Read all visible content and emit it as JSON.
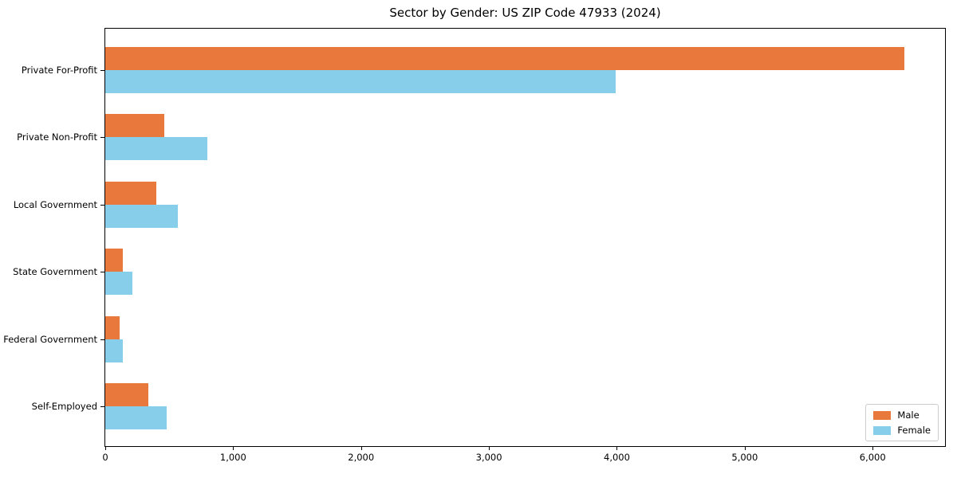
{
  "title": "Sector by Gender: US ZIP Code 47933 (2024)",
  "chart_data": {
    "type": "bar",
    "orientation": "horizontal",
    "title": "Sector by Gender: US ZIP Code 47933 (2024)",
    "xlabel": "",
    "ylabel": "",
    "categories": [
      "Private For-Profit",
      "Private Non-Profit",
      "Local Government",
      "State Government",
      "Federal Government",
      "Self-Employed"
    ],
    "series": [
      {
        "name": "Male",
        "color": "#e8783c",
        "values": [
          6250,
          460,
          400,
          140,
          115,
          335
        ]
      },
      {
        "name": "Female",
        "color": "#87ceeb",
        "values": [
          3990,
          800,
          570,
          210,
          135,
          480
        ]
      }
    ],
    "xlim": [
      0,
      6566
    ],
    "x_ticks": [
      0,
      1000,
      2000,
      3000,
      4000,
      5000,
      6000
    ],
    "x_tick_labels": [
      "0",
      "1,000",
      "2,000",
      "3,000",
      "4,000",
      "5,000",
      "6,000"
    ],
    "grid": false,
    "legend_position": "lower right",
    "axis_color": "#000000",
    "legend_border_color": "#cccccc"
  }
}
